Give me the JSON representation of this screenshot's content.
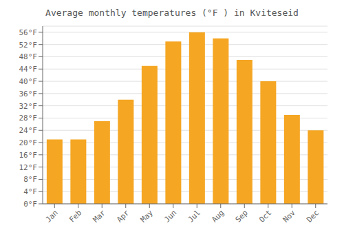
{
  "chart_data": {
    "type": "bar",
    "title": "Average monthly temperatures (°F ) in Kviteseid",
    "categories": [
      "Jan",
      "Feb",
      "Mar",
      "Apr",
      "May",
      "Jun",
      "Jul",
      "Aug",
      "Sep",
      "Oct",
      "Nov",
      "Dec"
    ],
    "values": [
      21,
      21,
      27,
      34,
      45,
      53,
      56,
      54,
      47,
      40,
      29,
      24
    ],
    "color": "#F5A623",
    "ylim": [
      0,
      58
    ],
    "yticks": [
      {
        "value": 0,
        "label": "0°F"
      },
      {
        "value": 4,
        "label": "4°F"
      },
      {
        "value": 8,
        "label": "8°F"
      },
      {
        "value": 12,
        "label": "12°F"
      },
      {
        "value": 16,
        "label": "16°F"
      },
      {
        "value": 20,
        "label": "20°F"
      },
      {
        "value": 24,
        "label": "24°F"
      },
      {
        "value": 28,
        "label": "28°F"
      },
      {
        "value": 32,
        "label": "32°F"
      },
      {
        "value": 36,
        "label": "36°F"
      },
      {
        "value": 40,
        "label": "40°F"
      },
      {
        "value": 44,
        "label": "44°F"
      },
      {
        "value": 48,
        "label": "48°F"
      },
      {
        "value": 52,
        "label": "52°F"
      },
      {
        "value": 56,
        "label": "56°F"
      }
    ],
    "grid": true
  }
}
